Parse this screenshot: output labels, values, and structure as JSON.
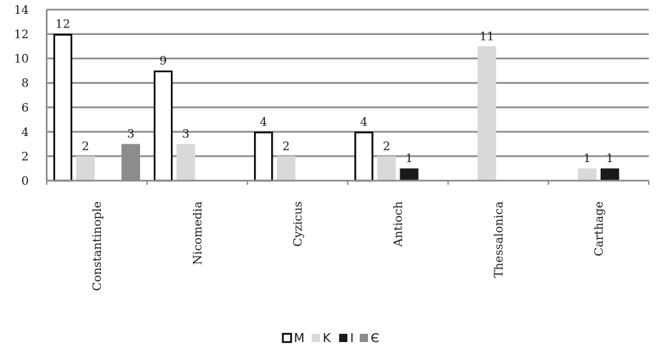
{
  "chart_data": {
    "type": "bar",
    "categories": [
      "Constantinople",
      "Nicomedia",
      "Cyzicus",
      "Antioch",
      "Thessalonica",
      "Carthage"
    ],
    "series": [
      {
        "name": "M",
        "values": [
          12,
          9,
          4,
          4,
          null,
          null
        ],
        "color": "#ffffff",
        "stroke": "#000000"
      },
      {
        "name": "K",
        "values": [
          2,
          3,
          2,
          2,
          11,
          1
        ],
        "color": "#d9d9d9",
        "stroke": "#d9d9d9"
      },
      {
        "name": "I",
        "values": [
          null,
          null,
          null,
          1,
          null,
          1
        ],
        "color": "#1a1a1a",
        "stroke": "#1a1a1a"
      },
      {
        "name": "Є",
        "values": [
          3,
          null,
          null,
          null,
          null,
          null
        ],
        "color": "#8c8c8c",
        "stroke": "#8c8c8c"
      }
    ],
    "ylim": [
      0,
      14
    ],
    "yticks": [
      "0",
      "2",
      "4",
      "6",
      "8",
      "10",
      "12",
      "14"
    ],
    "grid": true,
    "legend_position": "bottom-center",
    "data_labels": true
  }
}
